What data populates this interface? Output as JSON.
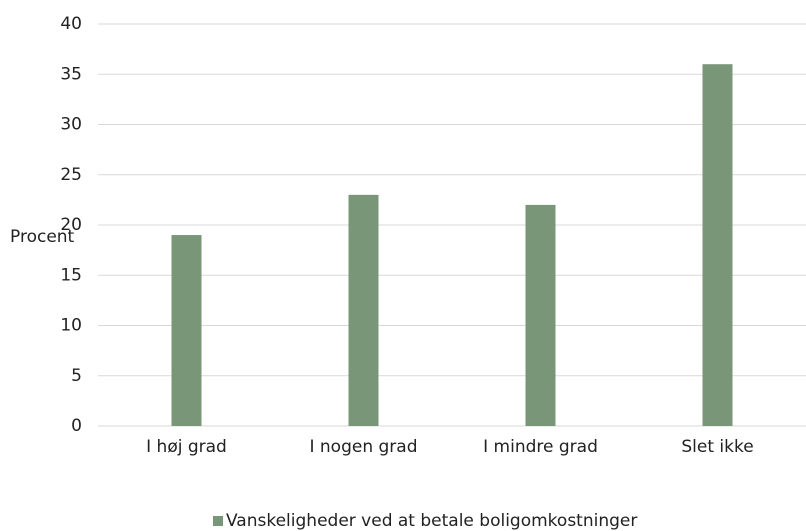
{
  "chart_data": {
    "type": "bar",
    "y_label": "Procent",
    "categories": [
      "I høj grad",
      "I nogen grad",
      "I mindre grad",
      "Slet ikke"
    ],
    "series": [
      {
        "name": "Vanskeligheder ved at betale boligomkostninger",
        "color": "#7a9679",
        "values": [
          19,
          23,
          22,
          36
        ]
      }
    ],
    "ylim": [
      0,
      40
    ],
    "yticks": [
      0,
      5,
      10,
      15,
      20,
      25,
      30,
      35,
      40
    ],
    "grid": true,
    "legend": "bottom"
  }
}
